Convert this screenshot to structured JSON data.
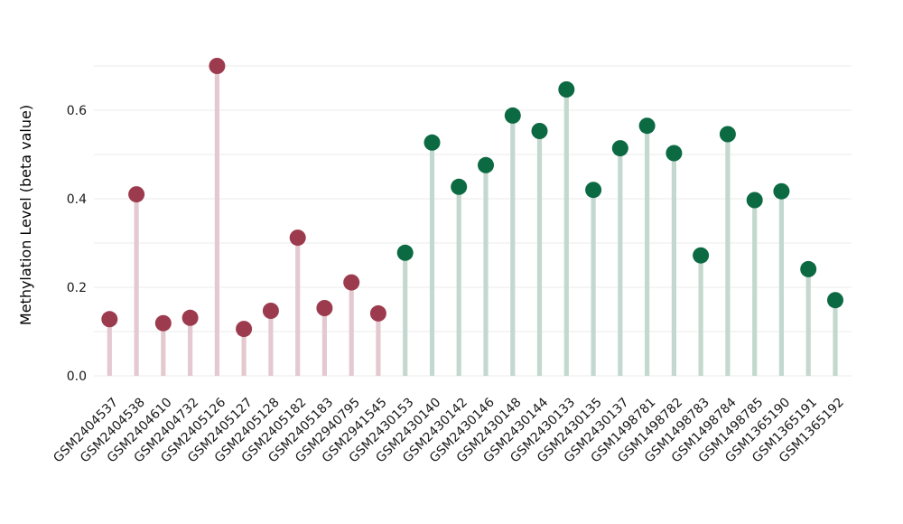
{
  "chart_data": {
    "type": "scatter",
    "variant": "lollipop",
    "title": "",
    "xlabel": "",
    "ylabel": "Methylation Level (beta value)",
    "ylim": [
      0,
      0.73
    ],
    "ytick_labels": [
      "0.0",
      "0.2",
      "0.4",
      "0.6"
    ],
    "grid": {
      "visible": true,
      "y_step": 0.1,
      "y_max": 0.7,
      "color": "#ebebeb"
    },
    "legend": "none",
    "background_color": "#ffffff",
    "tick_text_color": "#191919",
    "groups": {
      "red": {
        "dot": "#9d3b4e",
        "stem": "#e4c9d0"
      },
      "green": {
        "dot": "#0c6a43",
        "stem": "#c3d8ce"
      }
    },
    "points": [
      {
        "label": "GSM2404537",
        "value": 0.128,
        "group": "red"
      },
      {
        "label": "GSM2404538",
        "value": 0.41,
        "group": "red"
      },
      {
        "label": "GSM2404610",
        "value": 0.119,
        "group": "red"
      },
      {
        "label": "GSM2404732",
        "value": 0.131,
        "group": "red"
      },
      {
        "label": "GSM2405126",
        "value": 0.7,
        "group": "red"
      },
      {
        "label": "GSM2405127",
        "value": 0.106,
        "group": "red"
      },
      {
        "label": "GSM2405128",
        "value": 0.147,
        "group": "red"
      },
      {
        "label": "GSM2405182",
        "value": 0.312,
        "group": "red"
      },
      {
        "label": "GSM2405183",
        "value": 0.153,
        "group": "red"
      },
      {
        "label": "GSM2940795",
        "value": 0.211,
        "group": "red"
      },
      {
        "label": "GSM2941545",
        "value": 0.141,
        "group": "red"
      },
      {
        "label": "GSM2430153",
        "value": 0.278,
        "group": "green"
      },
      {
        "label": "GSM2430140",
        "value": 0.527,
        "group": "green"
      },
      {
        "label": "GSM2430142",
        "value": 0.427,
        "group": "green"
      },
      {
        "label": "GSM2430146",
        "value": 0.476,
        "group": "green"
      },
      {
        "label": "GSM2430148",
        "value": 0.588,
        "group": "green"
      },
      {
        "label": "GSM2430144",
        "value": 0.553,
        "group": "green"
      },
      {
        "label": "GSM2430133",
        "value": 0.647,
        "group": "green"
      },
      {
        "label": "GSM2430135",
        "value": 0.42,
        "group": "green"
      },
      {
        "label": "GSM2430137",
        "value": 0.514,
        "group": "green"
      },
      {
        "label": "GSM1498781",
        "value": 0.565,
        "group": "green"
      },
      {
        "label": "GSM1498782",
        "value": 0.503,
        "group": "green"
      },
      {
        "label": "GSM1498783",
        "value": 0.272,
        "group": "green"
      },
      {
        "label": "GSM1498784",
        "value": 0.546,
        "group": "green"
      },
      {
        "label": "GSM1498785",
        "value": 0.397,
        "group": "green"
      },
      {
        "label": "GSM1365190",
        "value": 0.417,
        "group": "green"
      },
      {
        "label": "GSM1365191",
        "value": 0.241,
        "group": "green"
      },
      {
        "label": "GSM1365192",
        "value": 0.171,
        "group": "green"
      }
    ]
  }
}
